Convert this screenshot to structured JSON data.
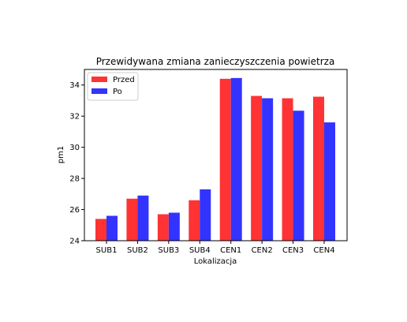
{
  "chart_data": {
    "type": "bar",
    "title": "Przewidywana zmiana zanieczyszczenia powietrza",
    "xlabel": "Lokalizacja",
    "ylabel": "pm1",
    "categories": [
      "SUB1",
      "SUB2",
      "SUB3",
      "SUB4",
      "CEN1",
      "CEN2",
      "CEN3",
      "CEN4"
    ],
    "ylim": [
      24,
      35
    ],
    "yticks": [
      "24",
      "26",
      "28",
      "30",
      "32",
      "34"
    ],
    "series": [
      {
        "name": "Przed",
        "color": "#ff3333",
        "values": [
          25.4,
          26.7,
          25.7,
          26.6,
          34.4,
          33.3,
          33.15,
          33.25
        ]
      },
      {
        "name": "Po",
        "color": "#3333ff",
        "values": [
          25.6,
          26.9,
          25.8,
          27.3,
          34.45,
          33.15,
          32.35,
          31.6
        ]
      }
    ],
    "legend_position": "top-left",
    "grid": false
  }
}
